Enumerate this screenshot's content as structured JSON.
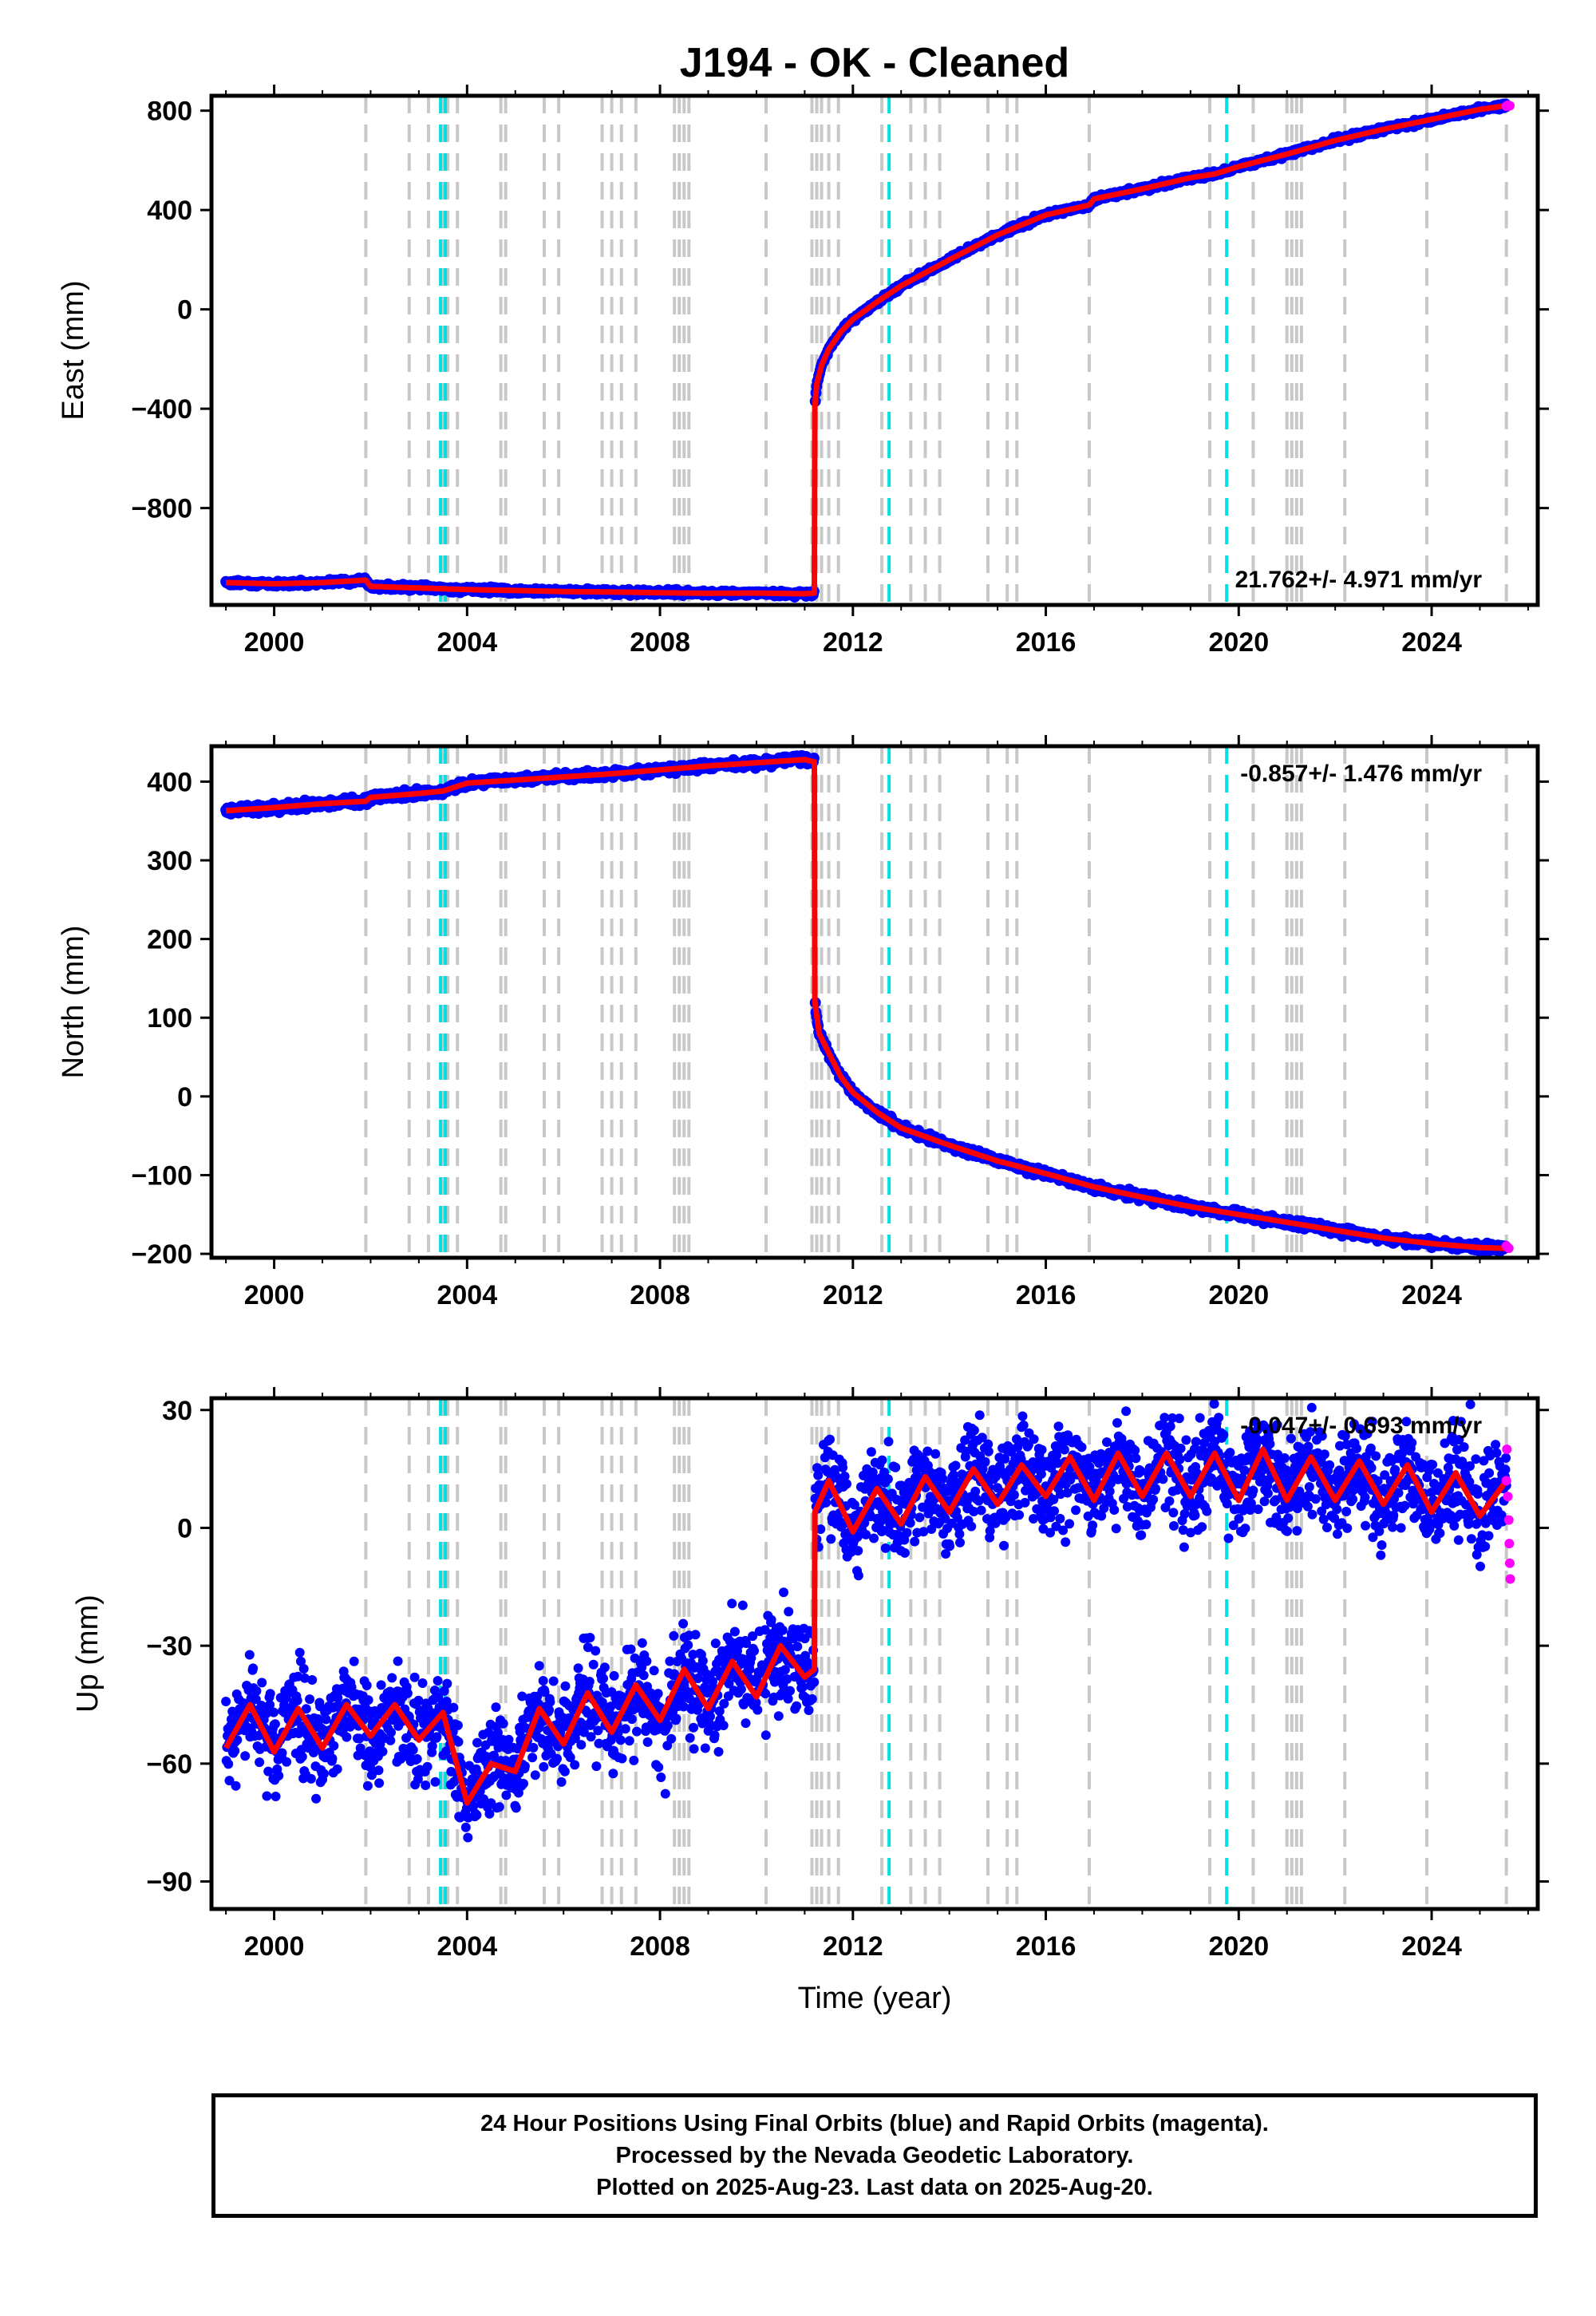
{
  "title": "J194  - OK - Cleaned",
  "footer": {
    "line1": "24 Hour Positions Using Final Orbits (blue) and Rapid Orbits (magenta).",
    "line2": "Processed by the Nevada Geodetic Laboratory.",
    "line3": "Plotted on 2025-Aug-23. Last data on 2025-Aug-20."
  },
  "colors": {
    "final_orbits": "#0000ff",
    "rapid_orbits": "#ff00ff",
    "model": "#ff0000",
    "equipment_change": "#c8c8c8",
    "earthquake": "#00e0e0"
  },
  "chart_data": [
    {
      "type": "scatter",
      "panel": "east",
      "ylabel": "East (mm)",
      "xlabel": "",
      "xlim": [
        1998.7,
        2026.2
      ],
      "ylim": [
        -1190,
        860
      ],
      "xticks": [
        2000,
        2004,
        2008,
        2012,
        2016,
        2020,
        2024
      ],
      "yticks": [
        -800,
        -400,
        0,
        400,
        800
      ],
      "ytick_labels": [
        "−800",
        "−400",
        "0",
        "400",
        "800"
      ],
      "rate_label": "21.762+/- 4.971 mm/yr",
      "rate_label_position": "bottom-right",
      "series": [
        {
          "style": "final-orbits-points",
          "x": [
            1999.0,
            2000.0,
            2001.0,
            2001.9,
            2002.0,
            2003.0,
            2004.0,
            2005.0,
            2006.0,
            2007.0,
            2008.0,
            2009.0,
            2010.0,
            2011.0,
            2011.2,
            2011.21,
            2011.25,
            2011.35,
            2011.5,
            2011.75,
            2012.0,
            2012.5,
            2013.0,
            2014.0,
            2015.0,
            2016.0,
            2016.9,
            2017.0,
            2018.0,
            2019.0,
            2019.5,
            2020.0,
            2021.0,
            2022.0,
            2023.0,
            2024.0,
            2025.0,
            2025.55
          ],
          "y": [
            -1100,
            -1105,
            -1100,
            -1090,
            -1115,
            -1122,
            -1128,
            -1132,
            -1136,
            -1138,
            -1141,
            -1143,
            -1142,
            -1145,
            -1142,
            -390,
            -300,
            -225,
            -160,
            -90,
            -40,
            30,
            95,
            200,
            300,
            380,
            420,
            445,
            485,
            530,
            545,
            575,
            625,
            680,
            725,
            765,
            805,
            820
          ]
        },
        {
          "style": "model-line",
          "x": [
            1999.0,
            2000.0,
            2001.0,
            2001.9,
            2002.0,
            2003.0,
            2004.0,
            2005.0,
            2006.0,
            2007.0,
            2008.0,
            2009.0,
            2010.0,
            2011.0,
            2011.2,
            2011.21,
            2011.25,
            2011.35,
            2011.5,
            2011.75,
            2012.0,
            2012.5,
            2013.0,
            2014.0,
            2015.0,
            2016.0,
            2016.9,
            2017.0,
            2018.0,
            2019.0,
            2019.5,
            2020.0,
            2021.0,
            2022.0,
            2023.0,
            2024.0,
            2025.0,
            2025.55
          ],
          "y": [
            -1100,
            -1105,
            -1100,
            -1090,
            -1115,
            -1122,
            -1128,
            -1132,
            -1136,
            -1138,
            -1141,
            -1143,
            -1142,
            -1145,
            -1142,
            -390,
            -300,
            -225,
            -160,
            -90,
            -40,
            30,
            95,
            200,
            300,
            380,
            420,
            445,
            485,
            530,
            545,
            575,
            625,
            680,
            725,
            765,
            805,
            820
          ]
        },
        {
          "style": "rapid-orbits-points",
          "x": [
            2025.55,
            2025.58,
            2025.62
          ],
          "y": [
            818,
            822,
            820
          ]
        }
      ]
    },
    {
      "type": "scatter",
      "panel": "north",
      "ylabel": "North (mm)",
      "xlabel": "",
      "xlim": [
        1998.7,
        2026.2
      ],
      "ylim": [
        -205,
        445
      ],
      "xticks": [
        2000,
        2004,
        2008,
        2012,
        2016,
        2020,
        2024
      ],
      "yticks": [
        -200,
        -100,
        0,
        100,
        200,
        300,
        400
      ],
      "ytick_labels": [
        "−200",
        "−100",
        "0",
        "100",
        "200",
        "300",
        "400"
      ],
      "rate_label": "-0.857+/- 1.476 mm/yr",
      "rate_label_position": "top-right",
      "series": [
        {
          "style": "final-orbits-points",
          "x": [
            1999.0,
            2000.0,
            2001.0,
            2001.9,
            2002.0,
            2003.0,
            2003.5,
            2004.0,
            2005.0,
            2006.0,
            2007.0,
            2008.0,
            2009.0,
            2010.0,
            2011.0,
            2011.2,
            2011.21,
            2011.3,
            2011.5,
            2011.75,
            2012.0,
            2012.5,
            2013.0,
            2014.0,
            2015.0,
            2016.0,
            2017.0,
            2018.0,
            2019.0,
            2020.0,
            2021.0,
            2022.0,
            2023.0,
            2024.0,
            2025.0,
            2025.55
          ],
          "y": [
            363,
            367,
            372,
            375,
            380,
            385,
            388,
            398,
            402,
            406,
            410,
            415,
            420,
            424,
            428,
            425,
            120,
            80,
            55,
            25,
            5,
            -20,
            -40,
            -62,
            -82,
            -98,
            -115,
            -128,
            -140,
            -150,
            -160,
            -170,
            -180,
            -187,
            -192,
            -193
          ]
        },
        {
          "style": "model-line",
          "x": [
            1999.0,
            2000.0,
            2001.0,
            2001.9,
            2002.0,
            2003.0,
            2003.5,
            2004.0,
            2005.0,
            2006.0,
            2007.0,
            2008.0,
            2009.0,
            2010.0,
            2011.0,
            2011.2,
            2011.21,
            2011.3,
            2011.5,
            2011.75,
            2012.0,
            2012.5,
            2013.0,
            2014.0,
            2015.0,
            2016.0,
            2017.0,
            2018.0,
            2019.0,
            2020.0,
            2021.0,
            2022.0,
            2023.0,
            2024.0,
            2025.0,
            2025.55
          ],
          "y": [
            363,
            367,
            372,
            375,
            380,
            385,
            388,
            398,
            402,
            406,
            410,
            415,
            420,
            424,
            428,
            425,
            120,
            80,
            55,
            25,
            5,
            -20,
            -40,
            -62,
            -82,
            -98,
            -115,
            -128,
            -140,
            -150,
            -160,
            -170,
            -180,
            -187,
            -192,
            -193
          ]
        },
        {
          "style": "rapid-orbits-points",
          "x": [
            2025.55,
            2025.6
          ],
          "y": [
            -190,
            -193
          ]
        }
      ]
    },
    {
      "type": "scatter",
      "panel": "up",
      "ylabel": "Up (mm)",
      "xlabel": "Time (year)",
      "xlim": [
        1998.7,
        2026.2
      ],
      "ylim": [
        -97,
        33
      ],
      "xticks": [
        2000,
        2004,
        2008,
        2012,
        2016,
        2020,
        2024
      ],
      "yticks": [
        -90,
        -60,
        -30,
        0,
        30
      ],
      "ytick_labels": [
        "−90",
        "−60",
        "−30",
        "0",
        "30"
      ],
      "rate_label": "-0.047+/- 0.693 mm/yr",
      "rate_label_position": "top-right",
      "series": [
        {
          "style": "final-orbits-points",
          "x": [
            1999.0,
            1999.5,
            2000.0,
            2000.5,
            2001.0,
            2001.5,
            2002.0,
            2002.5,
            2003.0,
            2003.5,
            2004.0,
            2004.5,
            2005.0,
            2005.5,
            2006.0,
            2006.5,
            2007.0,
            2007.5,
            2008.0,
            2008.5,
            2009.0,
            2009.5,
            2010.0,
            2010.5,
            2011.0,
            2011.2,
            2011.21,
            2011.5,
            2012.0,
            2012.5,
            2013.0,
            2013.5,
            2014.0,
            2014.5,
            2015.0,
            2015.5,
            2016.0,
            2016.5,
            2017.0,
            2017.5,
            2018.0,
            2018.5,
            2019.0,
            2019.5,
            2020.0,
            2020.5,
            2021.0,
            2021.5,
            2022.0,
            2022.5,
            2023.0,
            2023.5,
            2024.0,
            2024.5,
            2025.0,
            2025.55
          ],
          "y": [
            -56,
            -45,
            -57,
            -46,
            -56,
            -45,
            -53,
            -45,
            -54,
            -47,
            -70,
            -60,
            -62,
            -46,
            -55,
            -42,
            -52,
            -40,
            -49,
            -36,
            -46,
            -34,
            -43,
            -30,
            -38,
            -36,
            4,
            12,
            -1,
            10,
            1,
            13,
            4,
            15,
            6,
            16,
            8,
            18,
            7,
            19,
            8,
            19,
            8,
            19,
            7,
            20,
            7,
            18,
            7,
            17,
            6,
            16,
            4,
            14,
            3,
            12
          ]
        },
        {
          "style": "model-line",
          "x": [
            1999.0,
            1999.5,
            2000.0,
            2000.5,
            2001.0,
            2001.5,
            2002.0,
            2002.5,
            2003.0,
            2003.5,
            2004.0,
            2004.5,
            2005.0,
            2005.5,
            2006.0,
            2006.5,
            2007.0,
            2007.5,
            2008.0,
            2008.5,
            2009.0,
            2009.5,
            2010.0,
            2010.5,
            2011.0,
            2011.2,
            2011.21,
            2011.5,
            2012.0,
            2012.5,
            2013.0,
            2013.5,
            2014.0,
            2014.5,
            2015.0,
            2015.5,
            2016.0,
            2016.5,
            2017.0,
            2017.5,
            2018.0,
            2018.5,
            2019.0,
            2019.5,
            2020.0,
            2020.5,
            2021.0,
            2021.5,
            2022.0,
            2022.5,
            2023.0,
            2023.5,
            2024.0,
            2024.5,
            2025.0,
            2025.55
          ],
          "y": [
            -56,
            -45,
            -57,
            -46,
            -56,
            -45,
            -53,
            -45,
            -54,
            -47,
            -70,
            -60,
            -62,
            -46,
            -55,
            -42,
            -52,
            -40,
            -49,
            -36,
            -46,
            -34,
            -43,
            -30,
            -38,
            -36,
            4,
            12,
            -1,
            10,
            1,
            13,
            4,
            15,
            6,
            16,
            8,
            18,
            7,
            19,
            8,
            19,
            8,
            19,
            7,
            20,
            7,
            18,
            7,
            17,
            6,
            16,
            4,
            14,
            3,
            12
          ]
        },
        {
          "style": "rapid-orbits-points",
          "x": [
            2025.55,
            2025.56,
            2025.58,
            2025.6,
            2025.61,
            2025.62,
            2025.63
          ],
          "y": [
            12,
            20,
            8,
            2,
            -4,
            -9,
            -13
          ]
        }
      ]
    }
  ],
  "equipment_change_years": [
    2001.9,
    2002.8,
    2003.2,
    2003.5,
    2003.6,
    2003.8,
    2004.7,
    2004.8,
    2005.6,
    2005.9,
    2006.8,
    2007.0,
    2007.2,
    2007.5,
    2008.3,
    2008.4,
    2008.5,
    2008.6,
    2010.2,
    2011.15,
    2011.25,
    2011.35,
    2011.5,
    2011.7,
    2012.6,
    2013.2,
    2013.5,
    2013.8,
    2014.8,
    2015.2,
    2015.4,
    2016.9,
    2019.4,
    2020.3,
    2021.0,
    2021.1,
    2021.2,
    2021.3,
    2022.2,
    2023.9,
    2025.55
  ],
  "earthquake_years": [
    2003.45,
    2003.55,
    2012.75,
    2019.75
  ]
}
